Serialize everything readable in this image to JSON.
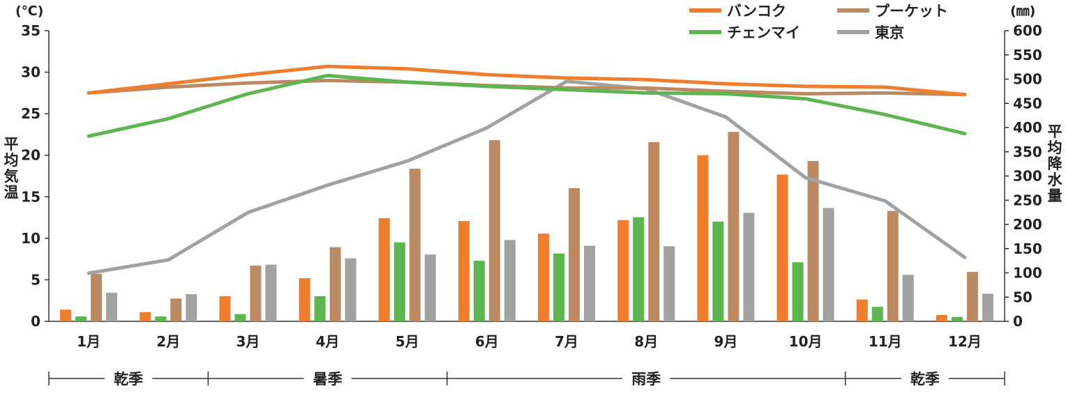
{
  "chart_data": {
    "type": "bar",
    "categories": [
      "1月",
      "2月",
      "3月",
      "4月",
      "5月",
      "6月",
      "7月",
      "8月",
      "9月",
      "10月",
      "11月",
      "12月"
    ],
    "y_left": {
      "unit": "(℃)",
      "label": "平均気温",
      "range": [
        0,
        35
      ],
      "ticks": [
        0,
        5,
        10,
        15,
        20,
        25,
        30,
        35
      ]
    },
    "y_right": {
      "unit": "(㎜)",
      "label": "平均降水量",
      "range": [
        0,
        600
      ],
      "ticks": [
        0,
        50,
        100,
        150,
        200,
        250,
        300,
        350,
        400,
        450,
        500,
        550,
        600
      ]
    },
    "temperature_series": [
      {
        "name": "バンコク",
        "color": "#ef7d2e",
        "values": [
          27.5,
          28.6,
          29.7,
          30.7,
          30.4,
          29.7,
          29.3,
          29.1,
          28.6,
          28.3,
          28.2,
          27.3
        ]
      },
      {
        "name": "チェンマイ",
        "color": "#5db54f",
        "values": [
          22.3,
          24.4,
          27.4,
          29.6,
          28.8,
          28.3,
          27.9,
          27.5,
          27.4,
          26.8,
          24.9,
          22.6
        ]
      },
      {
        "name": "プーケット",
        "color": "#bb8a63",
        "values": [
          27.5,
          28.2,
          28.7,
          29.0,
          28.8,
          28.4,
          28.1,
          28.1,
          27.7,
          27.4,
          27.5,
          27.3
        ]
      },
      {
        "name": "東京",
        "color": "#a1a1a1",
        "values": [
          5.8,
          7.4,
          13.1,
          16.4,
          19.3,
          23.3,
          28.9,
          28.0,
          24.6,
          17.3,
          14.5,
          7.7
        ]
      }
    ],
    "precipitation_series": [
      {
        "name": "バンコク",
        "color": "#ef7d2e",
        "values": [
          24,
          19,
          52,
          89,
          213,
          207,
          181,
          209,
          343,
          303,
          45,
          13
        ]
      },
      {
        "name": "チェンマイ",
        "color": "#5db54f",
        "values": [
          10,
          10,
          15,
          52,
          163,
          125,
          140,
          215,
          206,
          122,
          30,
          9
        ]
      },
      {
        "name": "プーケット",
        "color": "#bb8a63",
        "values": [
          98,
          47,
          115,
          153,
          315,
          374,
          275,
          370,
          391,
          331,
          228,
          102
        ]
      },
      {
        "name": "東京",
        "color": "#a1a1a1",
        "values": [
          59,
          56,
          117,
          130,
          138,
          168,
          156,
          155,
          224,
          234,
          96,
          57
        ]
      }
    ],
    "legend": {
      "placement": "top-right",
      "items": [
        {
          "name": "バンコク",
          "color": "#ef7d2e"
        },
        {
          "name": "プーケット",
          "color": "#bb8a63"
        },
        {
          "name": "チェンマイ",
          "color": "#5db54f"
        },
        {
          "name": "東京",
          "color": "#a1a1a1"
        }
      ]
    },
    "seasons": [
      {
        "label": "乾季",
        "from_month": 1,
        "to_month": 2
      },
      {
        "label": "暑季",
        "from_month": 3,
        "to_month": 5
      },
      {
        "label": "雨季",
        "from_month": 6,
        "to_month": 10
      },
      {
        "label": "乾季",
        "from_month": 11,
        "to_month": 12
      }
    ],
    "grid": false
  }
}
